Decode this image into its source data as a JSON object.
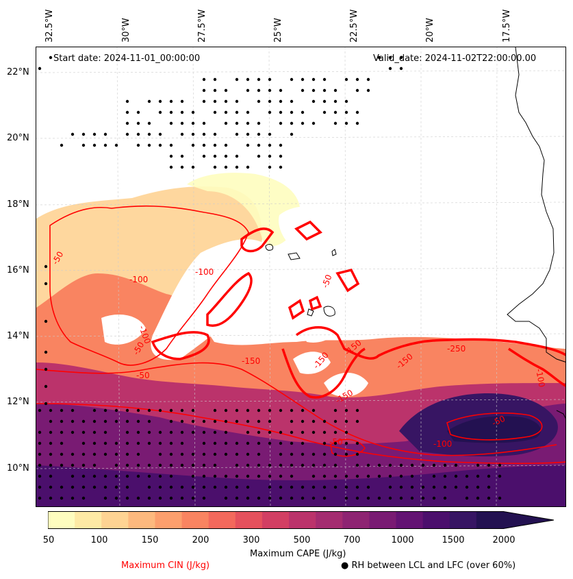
{
  "header": {
    "start_date": "Start date: 2024-11-01_00:00:00",
    "valid_date": "Valid_date: 2024-11-02T22:00:00.00"
  },
  "axes": {
    "lon_labels": [
      "32.5°W",
      "30°W",
      "27.5°W",
      "25°W",
      "22.5°W",
      "20°W",
      "17.5°W"
    ],
    "lat_labels": [
      "22°N",
      "20°N",
      "18°N",
      "16°N",
      "14°N",
      "12°N",
      "10°N"
    ]
  },
  "contour_labels": [
    "-50",
    "-100",
    "-100",
    "-100",
    "-50",
    "-50",
    "-150",
    "-150",
    "-150",
    "-150",
    "-50",
    "-50",
    "-250",
    "-100",
    "-150",
    "-50",
    "-100"
  ],
  "colorbar": {
    "ticks": [
      "50",
      "100",
      "150",
      "200",
      "300",
      "500",
      "700",
      "1000",
      "1500",
      "2000"
    ],
    "colors": [
      "#fefdbf",
      "#feeaa5",
      "#fed393",
      "#fdb97e",
      "#fc9f6d",
      "#f98461",
      "#f3695c",
      "#e5515d",
      "#d23f63",
      "#bb336b",
      "#a42c70",
      "#8e2472",
      "#791b73",
      "#631373",
      "#4b0f6c",
      "#371563",
      "#231151"
    ],
    "label": "Maximum CAPE (J/kg)"
  },
  "legend": {
    "cin_label": "Maximum CIN (J/kg)",
    "cin_color": "#ff0000",
    "rh_label": "● RH between LCL and LFC (over 60%)"
  }
}
